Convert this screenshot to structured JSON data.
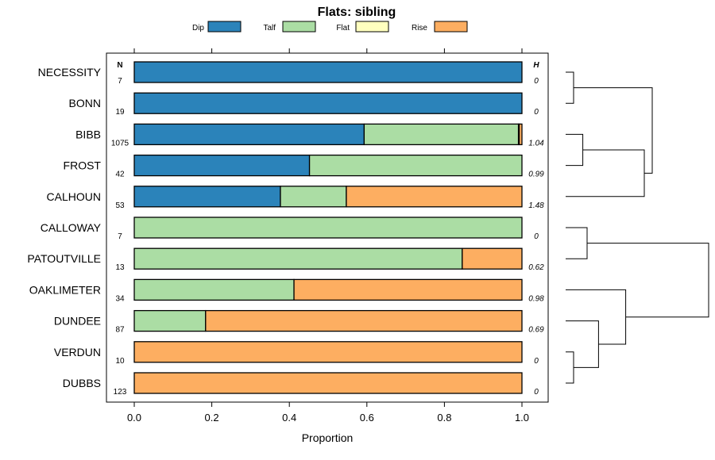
{
  "chart_data": {
    "type": "bar",
    "stacked": true,
    "orientation": "horizontal",
    "title": "Flats: sibling",
    "xlabel": "Proportion",
    "xlim": [
      0,
      1
    ],
    "xticks": [
      "0.0",
      "0.2",
      "0.4",
      "0.6",
      "0.8",
      "1.0"
    ],
    "n_header": "N",
    "h_header": "H",
    "legend": [
      {
        "name": "Dip",
        "color": "#2b83ba"
      },
      {
        "name": "Talf",
        "color": "#abdda4"
      },
      {
        "name": "Flat",
        "color": "#ffffbf"
      },
      {
        "name": "Rise",
        "color": "#fdae61"
      }
    ],
    "categories": [
      "NECESSITY",
      "BONN",
      "BIBB",
      "FROST",
      "CALHOUN",
      "CALLOWAY",
      "PATOUTVILLE",
      "OAKLIMETER",
      "DUNDEE",
      "VERDUN",
      "DUBBS"
    ],
    "n": [
      "7",
      "19",
      "1075",
      "42",
      "53",
      "7",
      "13",
      "34",
      "87",
      "10",
      "123"
    ],
    "h": [
      "0",
      "0",
      "1.04",
      "0.99",
      "1.48",
      "0",
      "0.62",
      "0.98",
      "0.69",
      "0",
      "0"
    ],
    "series": [
      {
        "name": "Dip",
        "values": [
          1.0,
          1.0,
          0.593,
          0.452,
          0.377,
          0.0,
          0.0,
          0.0,
          0.0,
          0.0,
          0.0
        ]
      },
      {
        "name": "Talf",
        "values": [
          0.0,
          0.0,
          0.398,
          0.548,
          0.17,
          1.0,
          0.846,
          0.412,
          0.184,
          0.0,
          0.0
        ]
      },
      {
        "name": "Flat",
        "values": [
          0.0,
          0.0,
          0.002,
          0.0,
          0.0,
          0.0,
          0.0,
          0.0,
          0.0,
          0.0,
          0.0
        ]
      },
      {
        "name": "Rise",
        "values": [
          0.0,
          0.0,
          0.007,
          0.0,
          0.453,
          0.0,
          0.154,
          0.588,
          0.816,
          1.0,
          1.0
        ]
      }
    ],
    "dendrogram": {
      "merges": [
        {
          "left": "NECESSITY",
          "right": "BONN",
          "height": 0.0
        },
        {
          "left": "BIBB",
          "right": "FROST",
          "height": 0.12
        },
        {
          "left": "CALLOWAY",
          "right": "PATOUTVILLE",
          "height": 0.15
        },
        {
          "left": "VERDUN",
          "right": "DUBBS",
          "height": 0.0
        },
        {
          "left": "DUNDEE",
          "right": "VERDUN+DUBBS",
          "height": 0.23
        },
        {
          "left": "OAKLIMETER",
          "right": "DUNDEE+VERDUN+DUBBS",
          "height": 0.42
        },
        {
          "left": "BIBB+FROST",
          "right": "CALHOUN",
          "height": 0.55
        },
        {
          "left": "NECESSITY+BONN",
          "right": "BIBB+FROST+CALHOUN",
          "height": 0.54
        },
        {
          "left": "CALLOWAY+PATOUTVILLE",
          "right": "OAKLIMETER+DUNDEE+VERDUN+DUBBS",
          "height": 1.0
        },
        {
          "left": "NECESSITY..CALHOUN",
          "right": "CALLOWAY..DUBBS",
          "height": 1.02
        }
      ]
    }
  }
}
